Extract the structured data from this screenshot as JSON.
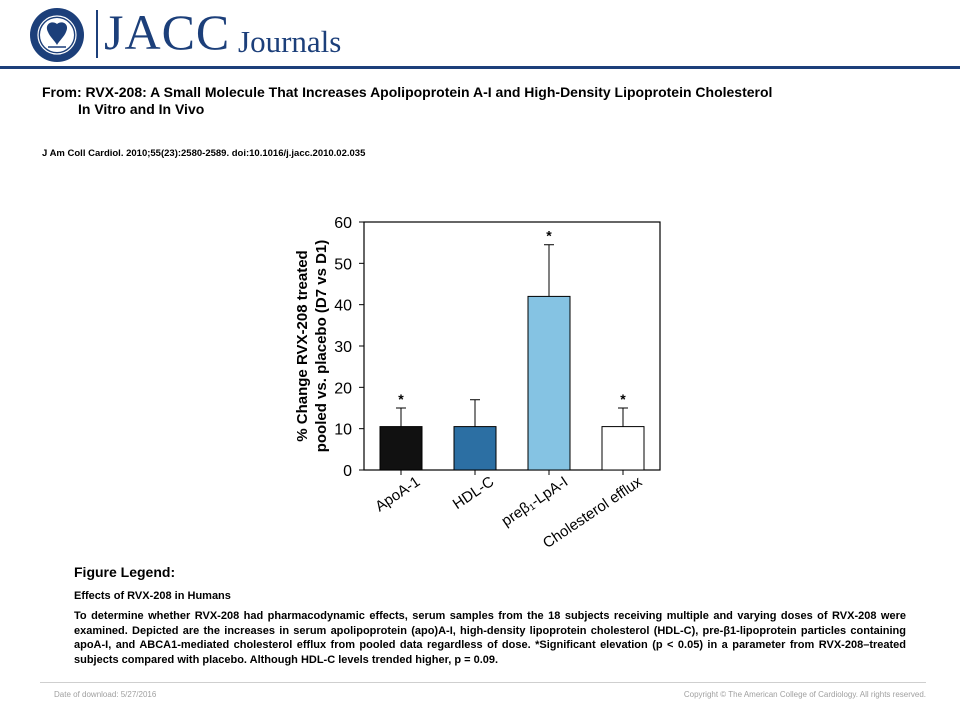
{
  "header": {
    "logo_text": "JACC",
    "logo_sub": "Journals",
    "seal_text": "AMERICAN COLLEGE OF CARDIOLOGY"
  },
  "title": {
    "line1": "From: RVX-208: A Small Molecule That Increases Apolipoprotein A-I and High-Density Lipoprotein Cholesterol",
    "line2": "In Vitro and In Vivo"
  },
  "citation": "J Am Coll Cardiol. 2010;55(23):2580-2589. doi:10.1016/j.jacc.2010.02.035",
  "chart_data": {
    "type": "bar",
    "categories": [
      "ApoA-1",
      "HDL-C",
      "preβ₁-LpA-I",
      "Cholesterol efflux"
    ],
    "values": [
      10.5,
      10.5,
      42,
      10.5
    ],
    "errors": [
      4.5,
      6.5,
      12.5,
      4.5
    ],
    "significant": [
      true,
      false,
      true,
      true
    ],
    "significance_marker": "*",
    "colors": [
      "#111111",
      "#2c6fa3",
      "#85c3e3",
      "#ffffff"
    ],
    "ylabel_line1": "% Change RVX-208 treated",
    "ylabel_line2": "pooled vs. placebo (D7 vs D1)",
    "ylim": [
      0,
      60
    ],
    "yticks": [
      0,
      10,
      20,
      30,
      40,
      50,
      60
    ],
    "grid": false
  },
  "legend": {
    "heading": "Figure Legend:",
    "subtitle": "Effects of RVX-208 in Humans",
    "body": "To determine whether RVX-208 had pharmacodynamic effects, serum samples from the 18 subjects receiving multiple and varying doses of RVX-208 were examined. Depicted are the increases in serum apolipoprotein (apo)A-I, high-density lipoprotein cholesterol (HDL-C), pre-β1-lipoprotein particles containing apoA-I, and ABCA1-mediated cholesterol efflux from pooled data regardless of dose. *Significant elevation (p < 0.05) in a parameter from RVX-208–treated subjects compared with placebo. Although HDL-C levels trended higher, p = 0.09."
  },
  "footer": {
    "left": "Date of download:  5/27/2016",
    "right": "Copyright © The American College of Cardiology. All rights reserved."
  }
}
